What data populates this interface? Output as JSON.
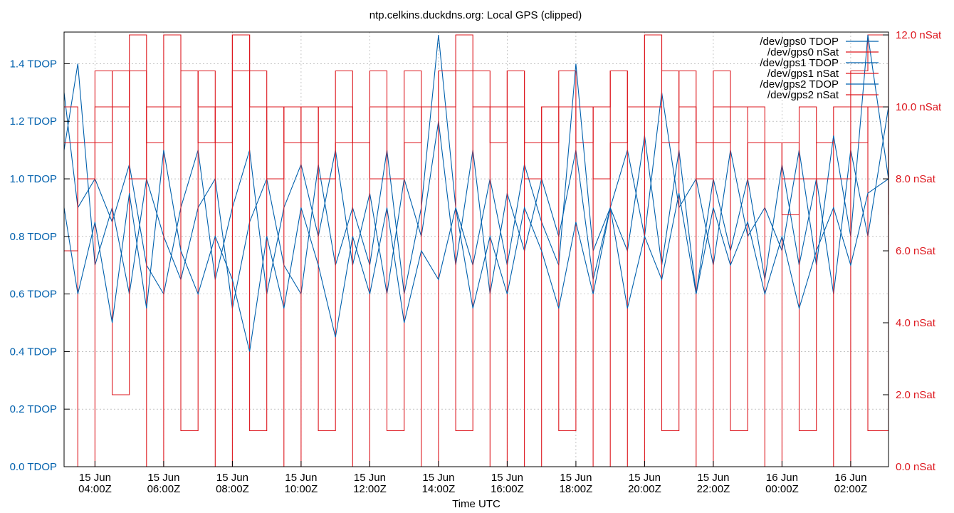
{
  "chart_data": {
    "type": "line",
    "title": "ntp.celkins.duckdns.org: Local GPS (clipped)",
    "xlabel": "Time UTC",
    "ylabel": "",
    "y2label": "",
    "ylim": [
      0.0,
      1.51
    ],
    "y2lim": [
      0.0,
      12.08
    ],
    "grid": true,
    "legend_position": "top-right",
    "colors": {
      "tdop": "#0060ad",
      "nsat": "#dd181f",
      "text": "#000000",
      "grid": "#a0a0a0"
    },
    "x_ticks": [
      [
        "15 Jun",
        "04:00Z"
      ],
      [
        "15 Jun",
        "06:00Z"
      ],
      [
        "15 Jun",
        "08:00Z"
      ],
      [
        "15 Jun",
        "10:00Z"
      ],
      [
        "15 Jun",
        "12:00Z"
      ],
      [
        "15 Jun",
        "14:00Z"
      ],
      [
        "15 Jun",
        "16:00Z"
      ],
      [
        "15 Jun",
        "18:00Z"
      ],
      [
        "15 Jun",
        "20:00Z"
      ],
      [
        "15 Jun",
        "22:00Z"
      ],
      [
        "16 Jun",
        "00:00Z"
      ],
      [
        "16 Jun",
        "02:00Z"
      ]
    ],
    "x_tick_hours": [
      4,
      6,
      8,
      10,
      12,
      14,
      16,
      18,
      20,
      22,
      24,
      26
    ],
    "x_range_hours": [
      3.1,
      27.1
    ],
    "y_ticks": [
      "0.0 TDOP",
      "0.2 TDOP",
      "0.4 TDOP",
      "0.6 TDOP",
      "0.8 TDOP",
      "1.0 TDOP",
      "1.2 TDOP",
      "1.4 TDOP"
    ],
    "y_tick_values": [
      0.0,
      0.2,
      0.4,
      0.6,
      0.8,
      1.0,
      1.2,
      1.4
    ],
    "y2_ticks": [
      "0.0 nSat",
      "2.0 nSat",
      "4.0 nSat",
      "6.0 nSat",
      "8.0 nSat",
      "10.0 nSat",
      "12.0 nSat"
    ],
    "y2_tick_values": [
      0,
      2,
      4,
      6,
      8,
      10,
      12
    ],
    "series": [
      {
        "name": "/dev/gps0 TDOP",
        "axis": "y",
        "color": "#0060ad",
        "x": [
          3.1,
          3.5,
          4.0,
          4.5,
          5.0,
          5.5,
          6.0,
          6.5,
          7.0,
          7.5,
          8.0,
          8.5,
          9.0,
          9.5,
          10.0,
          10.5,
          11.0,
          11.5,
          12.0,
          12.5,
          13.0,
          13.5,
          14.0,
          14.5,
          15.0,
          15.5,
          16.0,
          16.5,
          17.0,
          17.5,
          18.0,
          18.5,
          19.0,
          19.5,
          20.0,
          20.5,
          21.0,
          21.5,
          22.0,
          22.5,
          23.0,
          23.5,
          24.0,
          24.5,
          25.0,
          25.5,
          26.0,
          26.5,
          27.1
        ],
        "y": [
          1.3,
          0.9,
          1.0,
          0.85,
          1.05,
          0.7,
          0.6,
          0.9,
          1.1,
          0.65,
          0.9,
          1.1,
          0.6,
          0.9,
          1.05,
          0.8,
          1.1,
          0.7,
          0.95,
          0.6,
          1.0,
          0.8,
          1.2,
          0.7,
          1.1,
          0.6,
          0.95,
          0.75,
          1.0,
          0.8,
          1.1,
          0.65,
          0.9,
          0.75,
          1.15,
          0.7,
          1.1,
          0.6,
          1.0,
          0.75,
          1.0,
          0.65,
          1.05,
          0.7,
          1.0,
          0.6,
          1.1,
          0.8,
          1.25
        ]
      },
      {
        "name": "/dev/gps0 nSat",
        "axis": "y2",
        "color": "#dd181f",
        "x": [
          3.1,
          3.5,
          4.0,
          4.5,
          5.0,
          5.5,
          6.0,
          6.5,
          7.0,
          7.5,
          8.0,
          8.5,
          9.0,
          9.5,
          10.0,
          10.5,
          11.0,
          11.5,
          12.0,
          12.5,
          13.0,
          13.5,
          14.0,
          14.5,
          15.0,
          15.5,
          16.0,
          16.5,
          17.0,
          17.5,
          18.0,
          18.5,
          19.0,
          19.5,
          20.0,
          20.5,
          21.0,
          21.5,
          22.0,
          22.5,
          23.0,
          23.5,
          24.0,
          24.5,
          25.0,
          25.5,
          26.0,
          26.5,
          27.1
        ],
        "y": [
          6,
          9,
          10,
          11,
          8,
          10,
          12,
          11,
          9,
          10,
          12,
          11,
          8,
          10,
          9,
          10,
          11,
          9,
          8,
          10,
          11,
          10,
          11,
          12,
          11,
          10,
          11,
          9,
          10,
          11,
          9,
          10,
          11,
          10,
          12,
          11,
          10,
          9,
          11,
          10,
          10,
          9,
          8,
          10,
          9,
          10,
          11,
          12,
          7
        ]
      },
      {
        "name": "/dev/gps1 TDOP",
        "axis": "y",
        "color": "#0060ad",
        "x": [
          3.1,
          3.5,
          4.0,
          4.5,
          5.0,
          5.5,
          6.0,
          6.5,
          7.0,
          7.5,
          8.0,
          8.5,
          9.0,
          9.5,
          10.0,
          10.5,
          11.0,
          11.5,
          12.0,
          12.5,
          13.0,
          13.5,
          14.0,
          14.5,
          15.0,
          15.5,
          16.0,
          16.5,
          17.0,
          17.5,
          18.0,
          18.5,
          19.0,
          19.5,
          20.0,
          20.5,
          21.0,
          21.5,
          22.0,
          22.5,
          23.0,
          23.5,
          24.0,
          24.5,
          25.0,
          25.5,
          26.0,
          26.5,
          27.1
        ],
        "y": [
          1.1,
          1.4,
          0.7,
          0.9,
          0.6,
          1.0,
          0.8,
          0.65,
          0.9,
          1.0,
          0.55,
          0.85,
          1.0,
          0.7,
          0.6,
          1.05,
          0.7,
          0.9,
          0.7,
          1.1,
          0.6,
          0.9,
          1.5,
          0.9,
          0.7,
          1.0,
          0.7,
          1.05,
          0.85,
          0.7,
          1.4,
          0.75,
          0.9,
          1.1,
          0.8,
          1.3,
          0.9,
          1.0,
          0.7,
          1.1,
          0.8,
          0.9,
          0.75,
          1.1,
          0.7,
          1.15,
          0.8,
          1.5,
          1.0
        ]
      },
      {
        "name": "/dev/gps1 nSat",
        "axis": "y2",
        "color": "#dd181f",
        "x": [
          3.1,
          3.5,
          4.0,
          4.5,
          5.0,
          5.5,
          6.0,
          6.5,
          7.0,
          7.5,
          8.0,
          8.5,
          9.0,
          9.5,
          10.0,
          10.5,
          11.0,
          11.5,
          12.0,
          12.5,
          13.0,
          13.5,
          14.0,
          14.5,
          15.0,
          15.5,
          16.0,
          16.5,
          17.0,
          17.5,
          18.0,
          18.5,
          19.0,
          19.5,
          20.0,
          20.5,
          21.0,
          21.5,
          22.0,
          22.5,
          23.0,
          23.5,
          24.0,
          24.5,
          25.0,
          25.5,
          26.0,
          26.5,
          27.1
        ],
        "y": [
          9,
          0,
          11,
          2,
          12,
          0,
          10,
          1,
          11,
          0,
          12,
          1,
          10,
          0,
          10,
          1,
          9,
          0,
          11,
          1,
          10,
          0,
          11,
          1,
          10,
          0,
          11,
          0,
          10,
          1,
          10,
          0,
          11,
          0,
          12,
          1,
          11,
          0,
          10,
          1,
          9,
          0,
          9,
          1,
          8,
          0,
          10,
          1,
          9
        ]
      },
      {
        "name": "/dev/gps2 TDOP",
        "axis": "y",
        "color": "#0060ad",
        "x": [
          3.1,
          3.5,
          4.0,
          4.5,
          5.0,
          5.5,
          6.0,
          6.5,
          7.0,
          7.5,
          8.0,
          8.5,
          9.0,
          9.5,
          10.0,
          10.5,
          11.0,
          11.5,
          12.0,
          12.5,
          13.0,
          13.5,
          14.0,
          14.5,
          15.0,
          15.5,
          16.0,
          16.5,
          17.0,
          17.5,
          18.0,
          18.5,
          19.0,
          19.5,
          20.0,
          20.5,
          21.0,
          21.5,
          22.0,
          22.5,
          23.0,
          23.5,
          24.0,
          24.5,
          25.0,
          25.5,
          26.0,
          26.5,
          27.1
        ],
        "y": [
          0.9,
          0.6,
          0.85,
          0.5,
          0.95,
          0.55,
          1.1,
          0.75,
          0.6,
          0.8,
          0.65,
          0.4,
          0.8,
          0.55,
          0.9,
          0.7,
          0.45,
          0.8,
          0.6,
          0.9,
          0.5,
          0.75,
          0.65,
          0.9,
          0.55,
          0.8,
          0.6,
          0.9,
          0.75,
          0.55,
          0.85,
          0.6,
          0.9,
          0.55,
          0.8,
          0.65,
          0.95,
          0.6,
          0.9,
          0.7,
          0.85,
          0.6,
          0.8,
          0.55,
          0.75,
          0.9,
          0.7,
          0.95,
          1.0
        ]
      },
      {
        "name": "/dev/gps2 nSat",
        "axis": "y2",
        "color": "#dd181f",
        "x": [
          3.1,
          3.5,
          4.0,
          4.5,
          5.0,
          5.5,
          6.0,
          6.5,
          7.0,
          7.5,
          8.0,
          8.5,
          9.0,
          9.5,
          10.0,
          10.5,
          11.0,
          11.5,
          12.0,
          12.5,
          13.0,
          13.5,
          14.0,
          14.5,
          15.0,
          15.5,
          16.0,
          16.5,
          17.0,
          17.5,
          18.0,
          18.5,
          19.0,
          19.5,
          20.0,
          20.5,
          21.0,
          21.5,
          22.0,
          22.5,
          23.0,
          23.5,
          24.0,
          24.5,
          25.0,
          25.5,
          26.0,
          26.5,
          27.1
        ],
        "y": [
          10,
          8,
          9,
          10,
          11,
          9,
          10,
          11,
          10,
          9,
          11,
          10,
          10,
          9,
          10,
          8,
          10,
          9,
          10,
          8,
          9,
          10,
          10,
          11,
          10,
          9,
          10,
          8,
          9,
          10,
          10,
          8,
          9,
          10,
          10,
          9,
          10,
          8,
          9,
          10,
          8,
          9,
          7,
          8,
          9,
          8,
          9,
          10,
          6
        ]
      }
    ]
  }
}
